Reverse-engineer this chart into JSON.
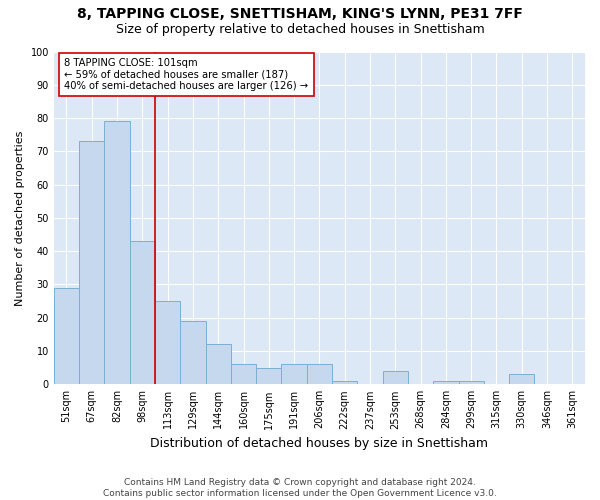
{
  "title1": "8, TAPPING CLOSE, SNETTISHAM, KING'S LYNN, PE31 7FF",
  "title2": "Size of property relative to detached houses in Snettisham",
  "xlabel": "Distribution of detached houses by size in Snettisham",
  "ylabel": "Number of detached properties",
  "categories": [
    "51sqm",
    "67sqm",
    "82sqm",
    "98sqm",
    "113sqm",
    "129sqm",
    "144sqm",
    "160sqm",
    "175sqm",
    "191sqm",
    "206sqm",
    "222sqm",
    "237sqm",
    "253sqm",
    "268sqm",
    "284sqm",
    "299sqm",
    "315sqm",
    "330sqm",
    "346sqm",
    "361sqm"
  ],
  "values": [
    29,
    73,
    79,
    43,
    25,
    19,
    12,
    6,
    5,
    6,
    6,
    1,
    0,
    4,
    0,
    1,
    1,
    0,
    3,
    0,
    0
  ],
  "bar_color": "#c5d8ee",
  "bar_edge_color": "#7aafd4",
  "background_color": "#dce8f5",
  "fig_background": "#ffffff",
  "grid_color": "#ffffff",
  "vline_x": 3.5,
  "vline_color": "#cc0000",
  "annotation_text": "8 TAPPING CLOSE: 101sqm\n← 59% of detached houses are smaller (187)\n40% of semi-detached houses are larger (126) →",
  "annotation_box_color": "#ffffff",
  "annotation_box_edge": "#cc0000",
  "footer": "Contains HM Land Registry data © Crown copyright and database right 2024.\nContains public sector information licensed under the Open Government Licence v3.0.",
  "ylim": [
    0,
    100
  ],
  "title1_fontsize": 10,
  "title2_fontsize": 9,
  "xlabel_fontsize": 9,
  "ylabel_fontsize": 8,
  "footer_fontsize": 6.5,
  "tick_fontsize": 7
}
